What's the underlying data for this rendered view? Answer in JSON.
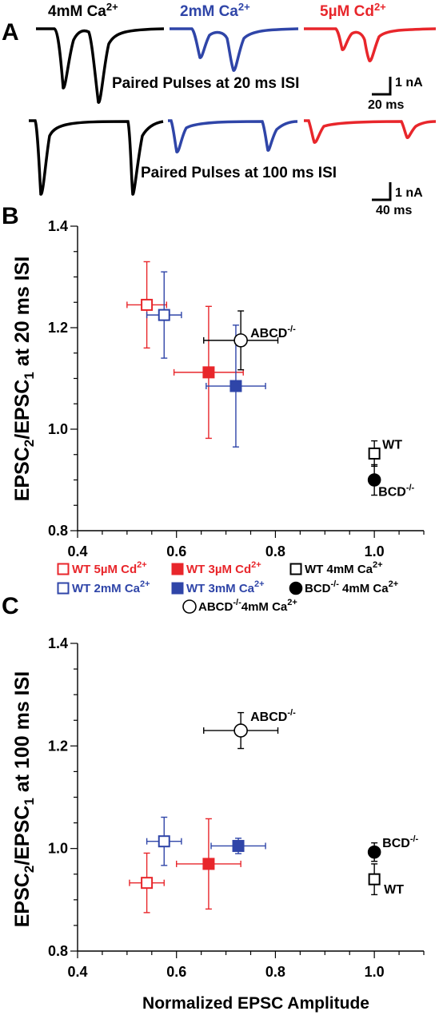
{
  "panels": {
    "a": "A",
    "b": "B",
    "c": "C"
  },
  "colors": {
    "black": "#000000",
    "blue": "#2f45a8",
    "red": "#e8262b"
  },
  "panel_a": {
    "conditions": [
      {
        "name": "4mM Ca",
        "sup": "2+",
        "color": "black"
      },
      {
        "name": "2mM Ca",
        "sup": "2+",
        "color": "blue"
      },
      {
        "name": "5µM Cd",
        "sup": "2+",
        "color": "red"
      }
    ],
    "caption_20": "Paired Pulses at 20 ms ISI",
    "caption_100": "Paired Pulses at 100 ms ISI",
    "scale_20": {
      "amp": "1 nA",
      "time": "20 ms"
    },
    "scale_100": {
      "amp": "1 nA",
      "time": "40 ms"
    }
  },
  "legend": [
    {
      "label": "WT 5µM Cd",
      "sup": "2+",
      "marker": "square-open",
      "color": "red"
    },
    {
      "label": "WT 3µM Cd",
      "sup": "2+",
      "marker": "square-filled",
      "color": "red"
    },
    {
      "label": "WT 4mM Ca",
      "sup": "2+",
      "marker": "square-open",
      "color": "black"
    },
    {
      "label": "WT 2mM Ca",
      "sup": "2+",
      "marker": "square-open",
      "color": "blue"
    },
    {
      "label": "WT 3mM Ca",
      "sup": "2+",
      "marker": "square-filled",
      "color": "blue"
    },
    {
      "label": "BCD",
      "sup": "-/-",
      "after": " 4mM Ca",
      "sup2": "2+",
      "marker": "circle-filled",
      "color": "black"
    },
    {
      "label": "ABCD",
      "sup": "-/-",
      "after": "4mM Ca",
      "sup2": "2+",
      "marker": "circle-open",
      "color": "black"
    }
  ],
  "chart_data": [
    {
      "type": "scatter",
      "panel": "B",
      "ylabel": "EPSC2/EPSC1 at 20 ms ISI",
      "xlim": [
        0.4,
        1.1
      ],
      "ylim": [
        0.8,
        1.4
      ],
      "xticks": [
        "0.4",
        "0.6",
        "0.8",
        "1.0"
      ],
      "yticks": [
        "0.8",
        "1.0",
        "1.2",
        "1.4"
      ],
      "points": [
        {
          "series": "WT 5µM Cd2+",
          "x": 0.54,
          "y": 1.245,
          "xerr": 0.04,
          "yerr": 0.085,
          "marker": "square-open",
          "color": "red"
        },
        {
          "series": "WT 2mM Ca2+",
          "x": 0.575,
          "y": 1.225,
          "xerr": 0.035,
          "yerr": 0.085,
          "marker": "square-open",
          "color": "blue"
        },
        {
          "series": "WT 3µM Cd2+",
          "x": 0.665,
          "y": 1.112,
          "xerr": 0.07,
          "yerr": 0.13,
          "marker": "square-filled",
          "color": "red"
        },
        {
          "series": "WT 3mM Ca2+",
          "x": 0.72,
          "y": 1.085,
          "xerr": 0.06,
          "yerr": 0.12,
          "marker": "square-filled",
          "color": "blue"
        },
        {
          "series": "ABCD-/- 4mM Ca2+",
          "x": 0.73,
          "y": 1.175,
          "xerr": 0.075,
          "yerr": 0.058,
          "marker": "circle-open",
          "color": "black",
          "label": "ABCD",
          "label_sup": "-/-"
        },
        {
          "series": "WT 4mM Ca2+",
          "x": 1.0,
          "y": 0.952,
          "xerr": 0,
          "yerr": 0.025,
          "marker": "square-open",
          "color": "black",
          "label": "WT"
        },
        {
          "series": "BCD-/- 4mM Ca2+",
          "x": 1.0,
          "y": 0.9,
          "xerr": 0,
          "yerr": 0.03,
          "marker": "circle-filled",
          "color": "black",
          "label": "BCD",
          "label_sup": "-/-"
        }
      ]
    },
    {
      "type": "scatter",
      "panel": "C",
      "ylabel": "EPSC2/EPSC1 at 100 ms ISI",
      "xlabel": "Normalized EPSC Amplitude",
      "xlim": [
        0.4,
        1.1
      ],
      "ylim": [
        0.8,
        1.4
      ],
      "xticks": [
        "0.4",
        "0.6",
        "0.8",
        "1.0"
      ],
      "yticks": [
        "0.8",
        "1.0",
        "1.2",
        "1.4"
      ],
      "points": [
        {
          "series": "WT 5µM Cd2+",
          "x": 0.54,
          "y": 0.933,
          "xerr": 0.035,
          "yerr": 0.058,
          "marker": "square-open",
          "color": "red"
        },
        {
          "series": "WT 2mM Ca2+",
          "x": 0.575,
          "y": 1.014,
          "xerr": 0.035,
          "yerr": 0.047,
          "marker": "square-open",
          "color": "blue"
        },
        {
          "series": "WT 3µM Cd2+",
          "x": 0.665,
          "y": 0.97,
          "xerr": 0.065,
          "yerr": 0.088,
          "marker": "square-filled",
          "color": "red"
        },
        {
          "series": "WT 3mM Ca2+",
          "x": 0.725,
          "y": 1.005,
          "xerr": 0.055,
          "yerr": 0.015,
          "marker": "square-filled",
          "color": "blue"
        },
        {
          "series": "ABCD-/- 4mM Ca2+",
          "x": 0.73,
          "y": 1.23,
          "xerr": 0.075,
          "yerr": 0.035,
          "marker": "circle-open",
          "color": "black",
          "label": "ABCD",
          "label_sup": "-/-"
        },
        {
          "series": "BCD-/- 4mM Ca2+",
          "x": 1.0,
          "y": 0.993,
          "xerr": 0,
          "yerr": 0.018,
          "marker": "circle-filled",
          "color": "black",
          "label": "BCD",
          "label_sup": "-/-"
        },
        {
          "series": "WT 4mM Ca2+",
          "x": 1.0,
          "y": 0.94,
          "xerr": 0,
          "yerr": 0.03,
          "marker": "square-open",
          "color": "black",
          "label": "WT"
        }
      ]
    }
  ]
}
